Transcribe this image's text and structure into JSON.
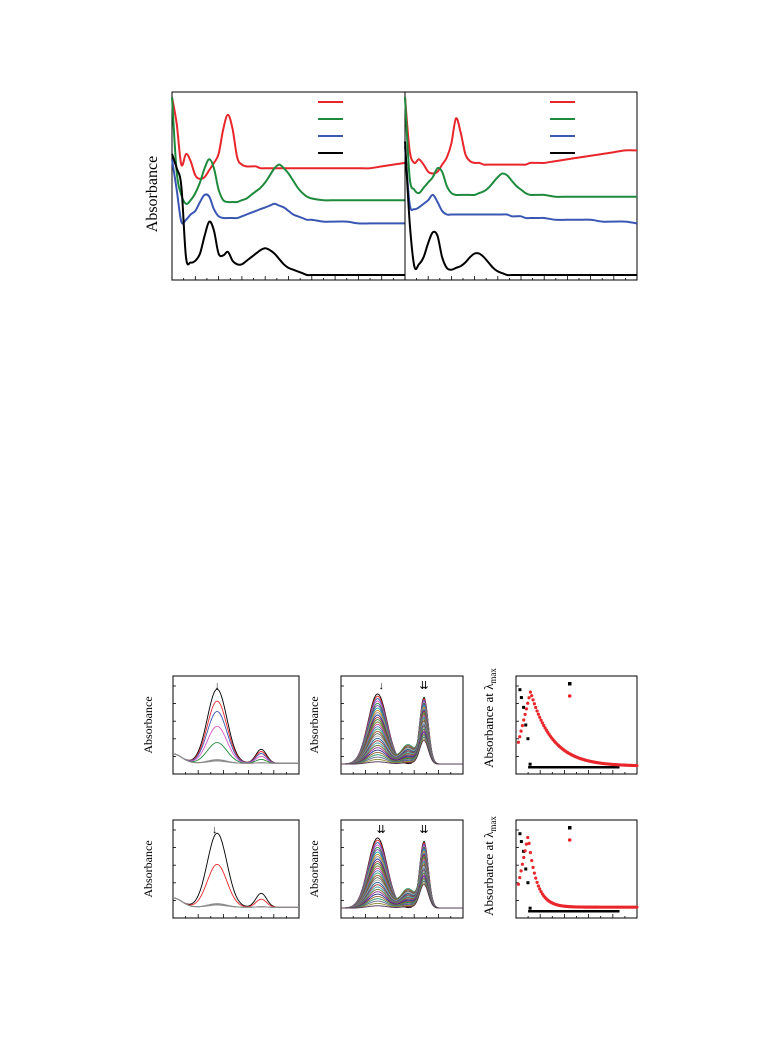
{
  "figure": {
    "top_ylabel": "Absorbance",
    "bottom_ylabel_absorbance": "Absorbance",
    "bottom_ylabel_lambda_prefix": "Absorbance at λ",
    "bottom_ylabel_lambda_sub": "max"
  },
  "colors": {
    "red": "#e8262b",
    "green": "#1e8a3c",
    "blue": "#3a57b4",
    "black": "#000000",
    "magenta": "#d455c8",
    "scatter_red": "#e8262b"
  },
  "chart_data": [
    {
      "type": "line",
      "panel": "top-left",
      "title": "",
      "xlabel": "",
      "ylabel": "Absorbance",
      "legend_placement": "top-right",
      "legend_swatches": [
        "red",
        "green",
        "blue",
        "black"
      ],
      "x": [
        0,
        0.02,
        0.04,
        0.06,
        0.08,
        0.1,
        0.12,
        0.14,
        0.16,
        0.18,
        0.2,
        0.22,
        0.24,
        0.26,
        0.28,
        0.3,
        0.32,
        0.34,
        0.36,
        0.38,
        0.4,
        0.42,
        0.44,
        0.46,
        0.48,
        0.5,
        0.52,
        0.54,
        0.56,
        0.58,
        0.6,
        0.65,
        0.7,
        0.75,
        0.8,
        0.85,
        0.9,
        0.95,
        1.0
      ],
      "series": [
        {
          "color": "red",
          "values": [
            1.0,
            0.85,
            0.62,
            0.68,
            0.64,
            0.56,
            0.54,
            0.55,
            0.59,
            0.63,
            0.68,
            0.82,
            0.9,
            0.82,
            0.66,
            0.62,
            0.61,
            0.61,
            0.61,
            0.6,
            0.6,
            0.6,
            0.6,
            0.6,
            0.6,
            0.6,
            0.6,
            0.6,
            0.6,
            0.6,
            0.6,
            0.6,
            0.6,
            0.6,
            0.6,
            0.6,
            0.61,
            0.62,
            0.63
          ]
        },
        {
          "color": "green",
          "values": [
            1.0,
            0.58,
            0.45,
            0.4,
            0.42,
            0.46,
            0.52,
            0.6,
            0.65,
            0.6,
            0.48,
            0.42,
            0.41,
            0.41,
            0.41,
            0.42,
            0.43,
            0.45,
            0.47,
            0.49,
            0.52,
            0.56,
            0.6,
            0.62,
            0.6,
            0.57,
            0.53,
            0.49,
            0.46,
            0.44,
            0.43,
            0.42,
            0.42,
            0.42,
            0.42,
            0.42,
            0.42,
            0.42,
            0.42
          ]
        },
        {
          "color": "blue",
          "values": [
            0.65,
            0.48,
            0.3,
            0.31,
            0.34,
            0.36,
            0.41,
            0.45,
            0.44,
            0.37,
            0.33,
            0.32,
            0.32,
            0.32,
            0.32,
            0.33,
            0.34,
            0.35,
            0.36,
            0.37,
            0.38,
            0.39,
            0.4,
            0.39,
            0.38,
            0.36,
            0.34,
            0.33,
            0.32,
            0.31,
            0.31,
            0.3,
            0.3,
            0.3,
            0.29,
            0.29,
            0.29,
            0.29,
            0.29
          ]
        },
        {
          "color": "black",
          "values": [
            0.68,
            0.6,
            0.5,
            0.1,
            0.07,
            0.08,
            0.12,
            0.22,
            0.3,
            0.25,
            0.12,
            0.11,
            0.13,
            0.08,
            0.06,
            0.06,
            0.08,
            0.1,
            0.12,
            0.14,
            0.15,
            0.14,
            0.12,
            0.09,
            0.06,
            0.04,
            0.03,
            0.02,
            0.01,
            0.0,
            0.0,
            0.0,
            0.0,
            0.0,
            0.0,
            0.0,
            0.0,
            0.0,
            0.0
          ]
        }
      ]
    },
    {
      "type": "line",
      "panel": "top-right",
      "title": "",
      "xlabel": "",
      "ylabel": "",
      "legend_placement": "top-right",
      "legend_swatches": [
        "red",
        "green",
        "blue",
        "black"
      ],
      "x": [
        0,
        0.02,
        0.04,
        0.06,
        0.08,
        0.1,
        0.12,
        0.14,
        0.16,
        0.18,
        0.2,
        0.22,
        0.24,
        0.26,
        0.28,
        0.3,
        0.32,
        0.34,
        0.36,
        0.38,
        0.4,
        0.42,
        0.44,
        0.46,
        0.48,
        0.5,
        0.52,
        0.54,
        0.56,
        0.58,
        0.6,
        0.65,
        0.7,
        0.75,
        0.8,
        0.85,
        0.9,
        0.95,
        1.0
      ],
      "series": [
        {
          "color": "red",
          "values": [
            1.0,
            0.7,
            0.63,
            0.65,
            0.62,
            0.58,
            0.57,
            0.58,
            0.62,
            0.66,
            0.74,
            0.88,
            0.8,
            0.68,
            0.64,
            0.63,
            0.63,
            0.62,
            0.62,
            0.62,
            0.62,
            0.62,
            0.62,
            0.62,
            0.62,
            0.62,
            0.62,
            0.63,
            0.63,
            0.63,
            0.63,
            0.64,
            0.65,
            0.66,
            0.67,
            0.68,
            0.69,
            0.7,
            0.7
          ]
        },
        {
          "color": "green",
          "values": [
            1.0,
            0.55,
            0.48,
            0.46,
            0.49,
            0.52,
            0.55,
            0.6,
            0.58,
            0.5,
            0.46,
            0.45,
            0.45,
            0.45,
            0.45,
            0.45,
            0.46,
            0.47,
            0.49,
            0.52,
            0.55,
            0.57,
            0.56,
            0.53,
            0.5,
            0.48,
            0.46,
            0.45,
            0.45,
            0.45,
            0.45,
            0.44,
            0.44,
            0.44,
            0.44,
            0.44,
            0.44,
            0.44,
            0.44
          ]
        },
        {
          "color": "blue",
          "values": [
            0.72,
            0.4,
            0.37,
            0.38,
            0.4,
            0.42,
            0.45,
            0.41,
            0.36,
            0.34,
            0.34,
            0.34,
            0.34,
            0.34,
            0.34,
            0.34,
            0.34,
            0.34,
            0.34,
            0.34,
            0.34,
            0.34,
            0.34,
            0.33,
            0.33,
            0.33,
            0.32,
            0.32,
            0.32,
            0.32,
            0.32,
            0.31,
            0.31,
            0.31,
            0.31,
            0.3,
            0.3,
            0.3,
            0.29
          ]
        },
        {
          "color": "black",
          "values": [
            0.75,
            0.3,
            0.05,
            0.06,
            0.1,
            0.18,
            0.24,
            0.22,
            0.1,
            0.04,
            0.03,
            0.04,
            0.05,
            0.07,
            0.1,
            0.12,
            0.12,
            0.1,
            0.07,
            0.04,
            0.02,
            0.01,
            0.0,
            0.0,
            0.0,
            0.0,
            0.0,
            0.0,
            0.0,
            0.0,
            0.0,
            0.0,
            0.0,
            0.0,
            0.0,
            0.0,
            0.0,
            0.0,
            0.0
          ]
        }
      ]
    },
    {
      "type": "line",
      "panel": "bottom-row1-col1",
      "ylabel": "Absorbance",
      "annotations": [
        "↓"
      ],
      "series_count": 8,
      "series_colors": [
        "black",
        "red",
        "blue",
        "magenta",
        "green",
        "gray",
        "gray",
        "gray"
      ],
      "peak_values": [
        1.0,
        0.84,
        0.7,
        0.5,
        0.28,
        0.05,
        0.04,
        0.03
      ]
    },
    {
      "type": "line",
      "panel": "bottom-row1-col2",
      "ylabel": "Absorbance",
      "annotations": [
        "↓",
        "⇊"
      ],
      "series_count": 30,
      "note_peaks": "first peak decreasing from 1.0 to 0.1, second peak constant ~1.0"
    },
    {
      "type": "scatter",
      "panel": "bottom-row1-col3",
      "ylabel": "Absorbance at λmax",
      "series": [
        {
          "color": "black",
          "shape": "square",
          "points_desc": "sharp drop near start, then flat near 0"
        },
        {
          "color": "red",
          "shape": "circle",
          "points_desc": "rise to peak then exponential decay"
        }
      ]
    },
    {
      "type": "line",
      "panel": "bottom-row2-col1",
      "ylabel": "Absorbance",
      "annotations": [
        "↓"
      ],
      "series_count": 6,
      "series_colors": [
        "black",
        "red",
        "gray",
        "gray",
        "gray",
        "gray"
      ],
      "peak_values": [
        1.0,
        0.58,
        0.05,
        0.04,
        0.04,
        0.03
      ]
    },
    {
      "type": "line",
      "panel": "bottom-row2-col2",
      "ylabel": "Absorbance",
      "annotations": [
        "⇊",
        "⇊"
      ],
      "series_count": 30
    },
    {
      "type": "scatter",
      "panel": "bottom-row2-col3",
      "ylabel": "Absorbance at λmax",
      "series": [
        {
          "color": "black",
          "shape": "square"
        },
        {
          "color": "red",
          "shape": "circle"
        }
      ]
    }
  ]
}
